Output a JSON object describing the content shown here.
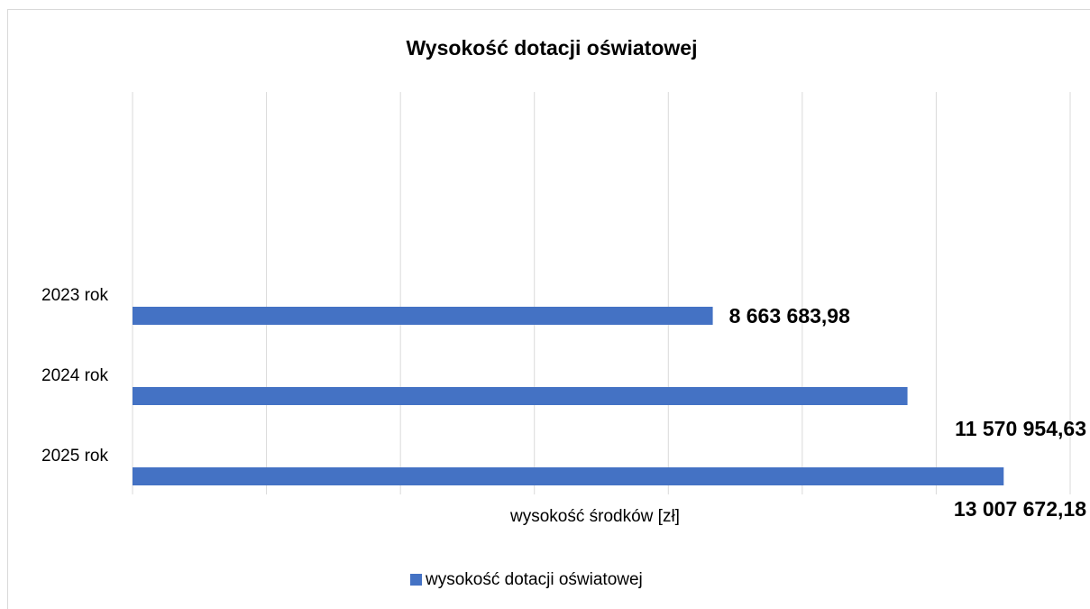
{
  "chart_data": {
    "type": "bar",
    "orientation": "horizontal",
    "title": "Wysokość dotacji oświatowej",
    "categories": [
      "2023 rok",
      "2024 rok",
      "2025 rok"
    ],
    "series": [
      {
        "name": "wysokość dotacji oświatowej",
        "color": "#4472c4",
        "values": [
          8663683.98,
          11570954.63,
          13007672.18
        ],
        "value_labels": [
          "8 663 683,98",
          "11 570 954,63",
          "13 007 672,18"
        ]
      }
    ],
    "x_label": "wysokość środków [zł]",
    "xlim": [
      0,
      14000000
    ],
    "xticks": [
      0,
      2000000,
      4000000,
      6000000,
      8000000,
      10000000,
      12000000,
      14000000
    ],
    "grid": true,
    "legend": "bottom"
  }
}
